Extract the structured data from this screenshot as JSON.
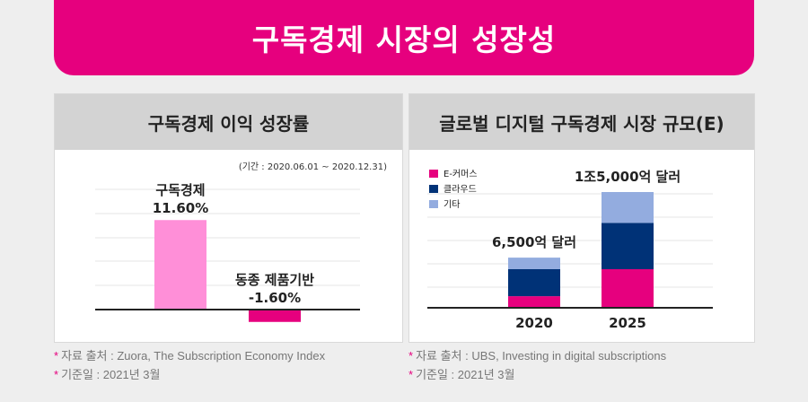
{
  "banner": {
    "title": "구독경제 시장의 성장성"
  },
  "colors": {
    "accent": "#e6007e",
    "pink_light": "#ff8fd8",
    "navy": "#003277",
    "lightblue": "#93acdf"
  },
  "chart_data": [
    {
      "type": "bar",
      "title": "구독경제 이익 성장률",
      "period": "(기간 : 2020.06.01 ~ 2020.12.31)",
      "categories": [
        "구독경제",
        "동종 제품기반"
      ],
      "values": [
        11.6,
        -1.6
      ],
      "value_labels": [
        "11.60%",
        "-1.60%"
      ],
      "grid": true
    },
    {
      "type": "bar",
      "stacked": true,
      "title": "글로벌 디지털 구독경제 시장 규모(E)",
      "categories": [
        "2020",
        "2025"
      ],
      "series": [
        {
          "name": "E-커머스",
          "values": [
            1.5,
            5.0
          ],
          "color": "#e6007e"
        },
        {
          "name": "클라우드",
          "values": [
            3.5,
            6.0
          ],
          "color": "#003277"
        },
        {
          "name": "기타",
          "values": [
            1.5,
            4.0
          ],
          "color": "#93acdf"
        }
      ],
      "totals_labels": [
        "6,500억 달러",
        "1조5,000억 달러"
      ],
      "legend": "top-left",
      "grid": true
    }
  ],
  "notes": {
    "left": [
      "자료 출처 : Zuora, The Subscription Economy Index",
      "기준일 : 2021년 3월"
    ],
    "right": [
      "자료 출처 : UBS, Investing in digital subscriptions",
      "기준일 : 2021년 3월"
    ]
  }
}
